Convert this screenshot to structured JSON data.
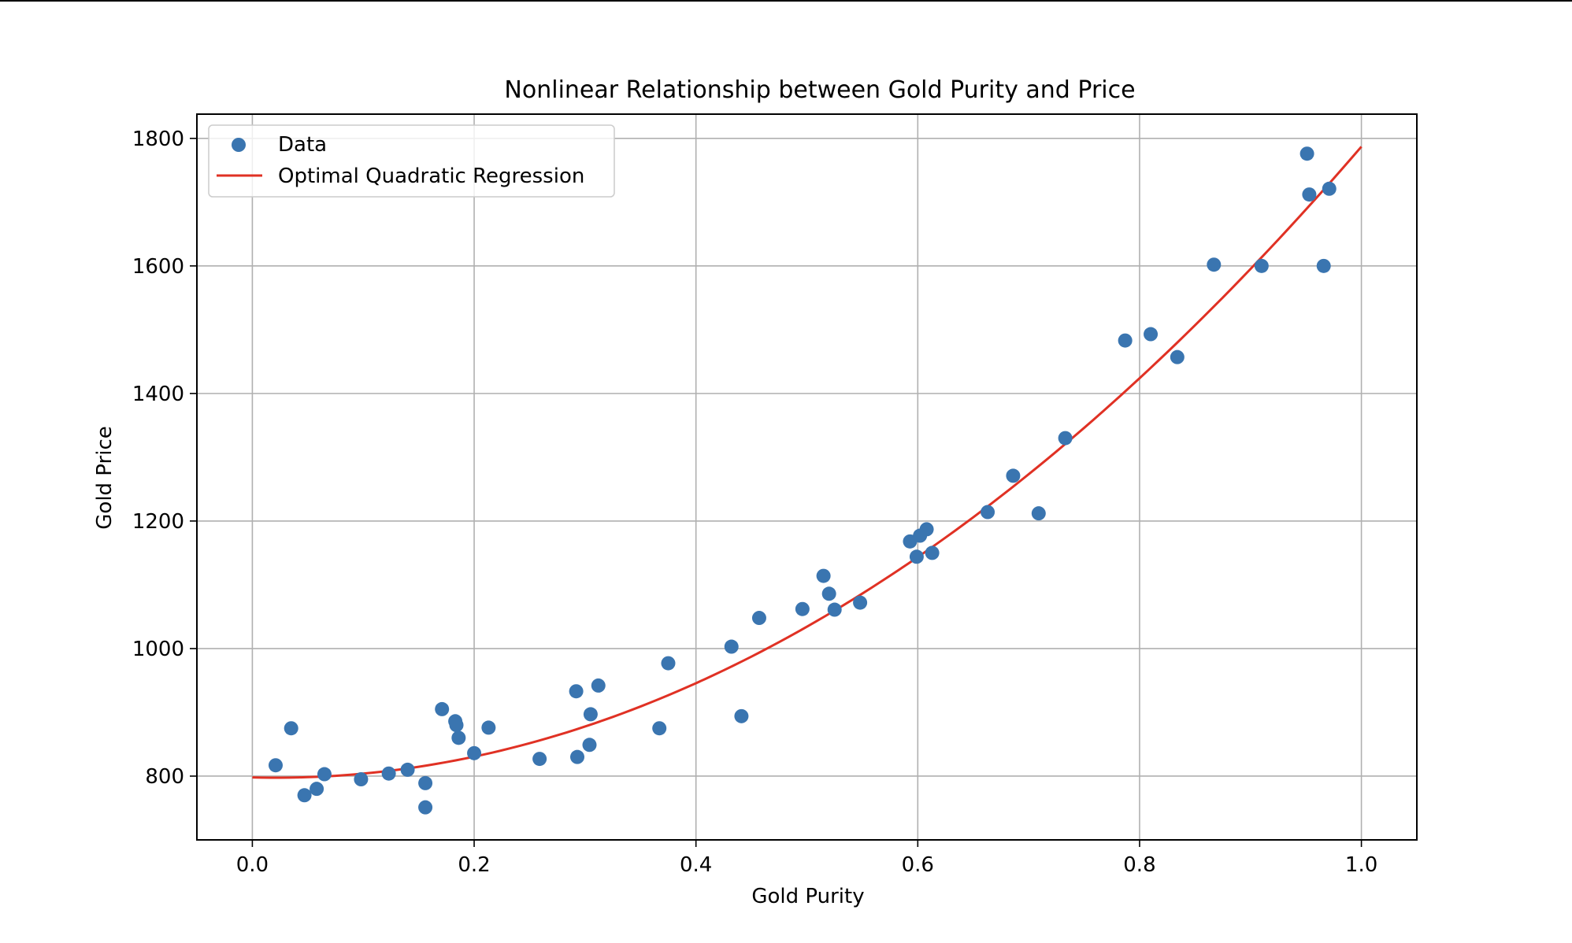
{
  "chart_data": {
    "type": "scatter",
    "title": "Nonlinear Relationship between Gold Purity and Price",
    "xlabel": "Gold Purity",
    "ylabel": "Gold Price",
    "xlim": [
      -0.05,
      1.05
    ],
    "ylim": [
      700,
      1838
    ],
    "x_ticks": [
      0.0,
      0.2,
      0.4,
      0.6,
      0.8,
      1.0
    ],
    "x_tick_labels": [
      "0.0",
      "0.2",
      "0.4",
      "0.6",
      "0.8",
      "1.0"
    ],
    "y_ticks": [
      800,
      1000,
      1200,
      1400,
      1600,
      1800
    ],
    "y_tick_labels": [
      "800",
      "1000",
      "1200",
      "1400",
      "1600",
      "1800"
    ],
    "grid": true,
    "legend_position": "top-left",
    "series": [
      {
        "name": "Data",
        "kind": "scatter",
        "color": "#3a75b0",
        "points": [
          [
            0.021,
            817
          ],
          [
            0.035,
            875
          ],
          [
            0.047,
            770
          ],
          [
            0.058,
            780
          ],
          [
            0.065,
            803
          ],
          [
            0.098,
            795
          ],
          [
            0.123,
            804
          ],
          [
            0.14,
            810
          ],
          [
            0.156,
            789
          ],
          [
            0.156,
            751
          ],
          [
            0.171,
            905
          ],
          [
            0.183,
            886
          ],
          [
            0.184,
            880
          ],
          [
            0.186,
            860
          ],
          [
            0.2,
            836
          ],
          [
            0.213,
            876
          ],
          [
            0.259,
            827
          ],
          [
            0.292,
            933
          ],
          [
            0.293,
            830
          ],
          [
            0.304,
            849
          ],
          [
            0.305,
            897
          ],
          [
            0.312,
            942
          ],
          [
            0.367,
            875
          ],
          [
            0.375,
            977
          ],
          [
            0.432,
            1003
          ],
          [
            0.441,
            894
          ],
          [
            0.457,
            1048
          ],
          [
            0.496,
            1062
          ],
          [
            0.515,
            1114
          ],
          [
            0.52,
            1086
          ],
          [
            0.525,
            1061
          ],
          [
            0.548,
            1072
          ],
          [
            0.593,
            1168
          ],
          [
            0.599,
            1144
          ],
          [
            0.602,
            1177
          ],
          [
            0.608,
            1187
          ],
          [
            0.613,
            1150
          ],
          [
            0.663,
            1214
          ],
          [
            0.686,
            1271
          ],
          [
            0.709,
            1212
          ],
          [
            0.733,
            1330
          ],
          [
            0.787,
            1483
          ],
          [
            0.81,
            1493
          ],
          [
            0.834,
            1457
          ],
          [
            0.867,
            1602
          ],
          [
            0.91,
            1600
          ],
          [
            0.951,
            1776
          ],
          [
            0.953,
            1712
          ],
          [
            0.966,
            1600
          ],
          [
            0.971,
            1721
          ]
        ]
      },
      {
        "name": "Optimal Quadratic Regression",
        "kind": "line",
        "color": "#e03124",
        "function": "quadratic",
        "coefficients": {
          "a": 1033,
          "b": -44,
          "c": 798
        },
        "x_range": [
          0.0,
          1.0
        ]
      }
    ]
  }
}
